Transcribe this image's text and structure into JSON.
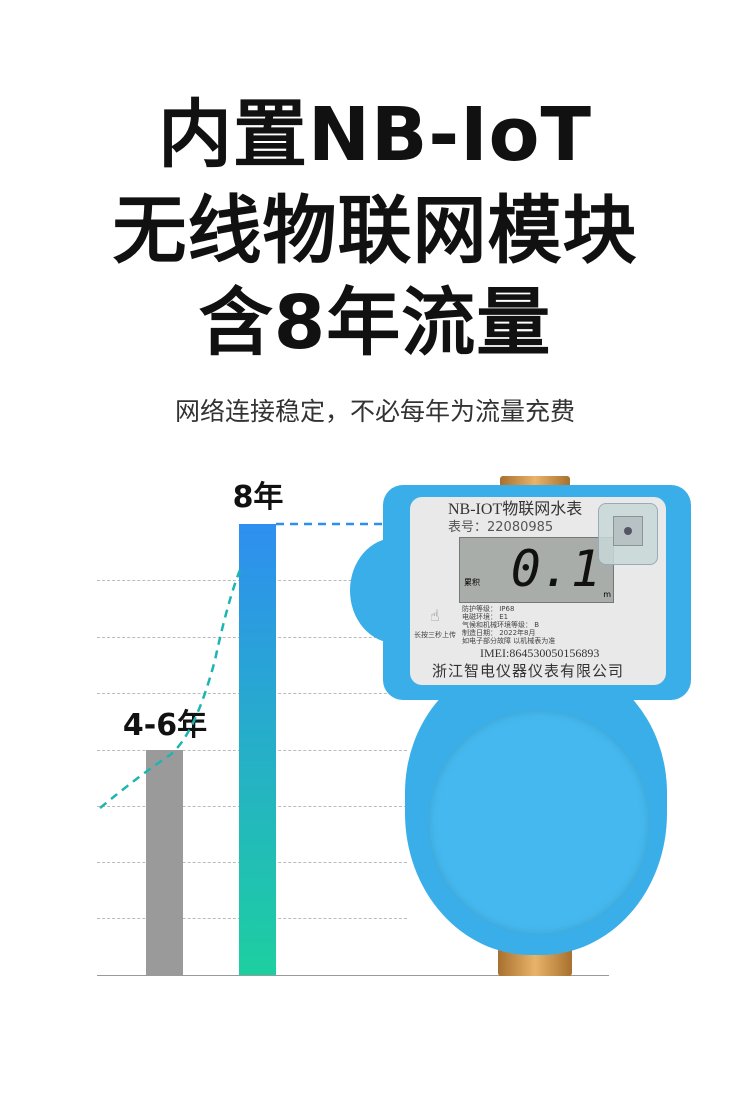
{
  "headline": [
    "内置NB-IoT",
    "无线物联网模块",
    "含8年流量"
  ],
  "subtitle": "网络连接稳定，不必每年为流量充费",
  "comparison": {
    "bars": [
      {
        "label": "4-6年",
        "value_years": 6,
        "color": "#9a9a9a"
      },
      {
        "label": "8年",
        "value_years": 8,
        "color_top": "#2e8ff0",
        "color_bottom": "#1dcfa0"
      }
    ]
  },
  "meter": {
    "title": "NB-IOT物联网水表",
    "number": "表号：22080985",
    "lcd_label": "累积",
    "reading": "0.1",
    "unit": "m",
    "specs": [
      "防护等级：  IP68",
      "电磁环境：  E1",
      "气候和机械环境等级：  B",
      "制造日期：  2022年8月",
      "如电子部分故障 以机械表为准"
    ],
    "upload_hint": "长按三秒上传",
    "imei": "IMEI:864530050156893",
    "maker": "浙江智电仪器仪表有限公司",
    "body_color": "#3aaee8"
  }
}
